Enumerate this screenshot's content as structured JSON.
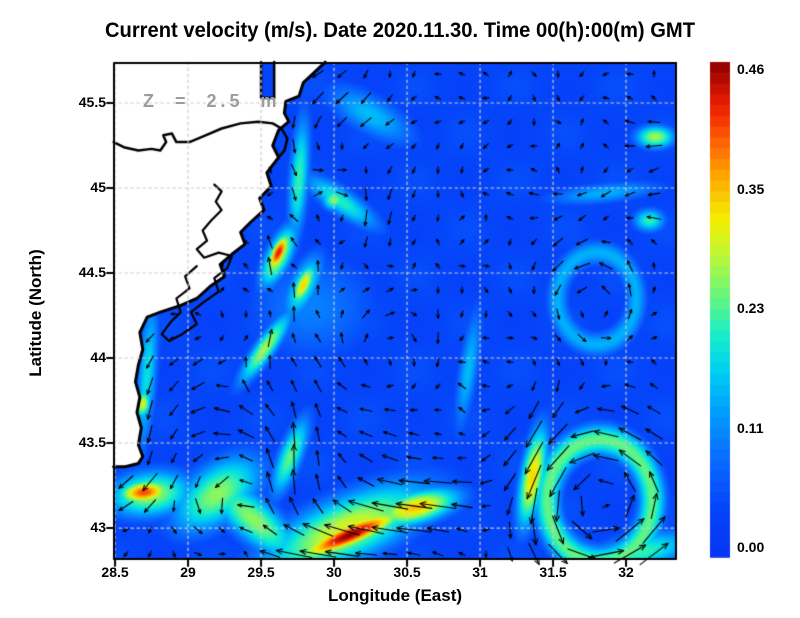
{
  "chart_data": {
    "type": "heatmap",
    "subtype": "ocean-current-speed-with-vector-arrows",
    "title": "Current velocity (m/s). Date 2020.11.30. Time 00(h):00(m) GMT",
    "depth_label": "Z = 2.5 m",
    "date": "2020.11.30",
    "time": "00(h):00(m) GMT",
    "unit": "m/s",
    "xlabel": "Longitude (East)",
    "ylabel": "Latitude (North)",
    "xlim": [
      28.486,
      32.349
    ],
    "ylim": [
      42.812,
      45.741
    ],
    "grid": true,
    "x_ticks": [
      {
        "v": 28.5,
        "label": "28.5"
      },
      {
        "v": 29.0,
        "label": "29"
      },
      {
        "v": 29.5,
        "label": "29.5"
      },
      {
        "v": 30.0,
        "label": "30"
      },
      {
        "v": 30.5,
        "label": "30.5"
      },
      {
        "v": 31.0,
        "label": "31"
      },
      {
        "v": 31.5,
        "label": "31.5"
      },
      {
        "v": 32.0,
        "label": "32"
      }
    ],
    "y_ticks": [
      {
        "v": 45.5,
        "label": "45.5"
      },
      {
        "v": 45.0,
        "label": "45"
      },
      {
        "v": 44.5,
        "label": "44.5"
      },
      {
        "v": 44.0,
        "label": "44"
      },
      {
        "v": 43.5,
        "label": "43.5"
      },
      {
        "v": 43.0,
        "label": "43"
      }
    ],
    "colorbar": {
      "min": 0.0,
      "max": 0.46,
      "labels": [
        {
          "v": 0.46,
          "label": "0.46"
        },
        {
          "v": 0.345,
          "label": "0.35"
        },
        {
          "v": 0.23,
          "label": "0.23"
        },
        {
          "v": 0.115,
          "label": "0.11"
        },
        {
          "v": 0.0,
          "label": "0.00"
        }
      ],
      "stops": [
        [
          0.0,
          "#0535f5"
        ],
        [
          0.1,
          "#0546fa"
        ],
        [
          0.2,
          "#0a6cff"
        ],
        [
          0.3,
          "#00a2ff"
        ],
        [
          0.38,
          "#00d2f0"
        ],
        [
          0.45,
          "#18eec8"
        ],
        [
          0.52,
          "#62f584"
        ],
        [
          0.6,
          "#b4f83c"
        ],
        [
          0.68,
          "#f4ef00"
        ],
        [
          0.76,
          "#ffb000"
        ],
        [
          0.84,
          "#ff6000"
        ],
        [
          0.91,
          "#ee1e00"
        ],
        [
          1.0,
          "#8c0000"
        ]
      ]
    },
    "background_speed": 0.045,
    "speed_field_features": [
      {
        "name": "main-jet-core",
        "lon": 30.11,
        "lat": 42.96,
        "value": 0.46,
        "sx": 0.28,
        "sy": 0.05,
        "rot": 20,
        "u": -0.4,
        "v": 0.1
      },
      {
        "name": "main-jet-halo",
        "lon": 30.08,
        "lat": 42.99,
        "value": 0.3,
        "sx": 0.45,
        "sy": 0.14,
        "rot": 20,
        "u": -0.15,
        "v": 0.04
      },
      {
        "name": "jet-east-extension",
        "lon": 30.56,
        "lat": 43.12,
        "value": 0.34,
        "sx": 0.22,
        "sy": 0.07,
        "rot": 12,
        "u": -0.28,
        "v": 0.06
      },
      {
        "name": "jet-west-band",
        "lon": 29.45,
        "lat": 43.05,
        "value": 0.26,
        "sx": 0.28,
        "sy": 0.1,
        "rot": -35,
        "u": -0.15,
        "v": -0.13
      },
      {
        "name": "sw-coastal-spot",
        "lon": 28.7,
        "lat": 43.21,
        "value": 0.4,
        "sx": 0.13,
        "sy": 0.05,
        "rot": 5,
        "u": -0.2,
        "v": -0.16
      },
      {
        "name": "sw-coastal-halo",
        "lon": 28.74,
        "lat": 43.2,
        "value": 0.27,
        "sx": 0.22,
        "sy": 0.1,
        "rot": 5,
        "u": 0,
        "v": 0
      },
      {
        "name": "delta-red-spot",
        "lon": 29.62,
        "lat": 44.62,
        "value": 0.43,
        "sx": 0.09,
        "sy": 0.035,
        "rot": 60,
        "u": 0.04,
        "v": 0.3
      },
      {
        "name": "delta-red-halo",
        "lon": 29.62,
        "lat": 44.6,
        "value": 0.29,
        "sx": 0.15,
        "sy": 0.06,
        "rot": 60,
        "u": 0,
        "v": 0
      },
      {
        "name": "yellow-spot-south",
        "lon": 29.79,
        "lat": 44.43,
        "value": 0.33,
        "sx": 0.1,
        "sy": 0.04,
        "rot": 60,
        "u": 0.05,
        "v": 0.26
      },
      {
        "name": "yellow-spot-halo",
        "lon": 29.79,
        "lat": 44.42,
        "value": 0.22,
        "sx": 0.16,
        "sy": 0.07,
        "rot": 60,
        "u": 0,
        "v": 0
      },
      {
        "name": "sw-delta-filament",
        "lon": 29.53,
        "lat": 44.06,
        "value": 0.27,
        "sx": 0.2,
        "sy": 0.048,
        "rot": 50,
        "u": 0.07,
        "v": 0.18
      },
      {
        "name": "coastal-strip-west",
        "lon": 28.72,
        "lat": 43.9,
        "value": 0.19,
        "sx": 0.34,
        "sy": 0.05,
        "rot": 85,
        "u": -0.04,
        "v": -0.14
      },
      {
        "name": "coastal-yellow-dot",
        "lon": 28.69,
        "lat": 43.73,
        "value": 0.3,
        "sx": 0.06,
        "sy": 0.04,
        "rot": 80,
        "u": 0,
        "v": 0
      },
      {
        "name": "green-region-low",
        "lon": 29.2,
        "lat": 43.2,
        "value": 0.26,
        "sx": 0.25,
        "sy": 0.13,
        "rot": 30,
        "u": 0.04,
        "v": 0.14
      },
      {
        "name": "mid-green-band",
        "lon": 29.7,
        "lat": 43.42,
        "value": 0.24,
        "sx": 0.19,
        "sy": 0.06,
        "rot": 65,
        "u": 0.05,
        "v": 0.2
      },
      {
        "name": "eddy1-west-arc",
        "lon": 31.36,
        "lat": 43.3,
        "value": 0.33,
        "sx": 0.22,
        "sy": 0.06,
        "rot": 78,
        "u": -0.04,
        "v": -0.26
      },
      {
        "name": "se-corner-band",
        "lon": 32.1,
        "lat": 42.86,
        "value": 0.22,
        "sx": 0.28,
        "sy": 0.08,
        "rot": 10,
        "u": 0.18,
        "v": 0.05
      },
      {
        "name": "ne-green-spot",
        "lon": 32.2,
        "lat": 45.3,
        "value": 0.27,
        "sx": 0.1,
        "sy": 0.05,
        "rot": 0,
        "u": -0.16,
        "v": 0.03
      },
      {
        "name": "ne-cyan-streak",
        "lon": 31.85,
        "lat": 44.97,
        "value": 0.15,
        "sx": 0.3,
        "sy": 0.045,
        "rot": 5,
        "u": -0.1,
        "v": 0
      },
      {
        "name": "top-cyan-patch",
        "lon": 30.25,
        "lat": 45.43,
        "value": 0.16,
        "sx": 0.25,
        "sy": 0.09,
        "rot": -25,
        "u": -0.12,
        "v": -0.1
      },
      {
        "name": "delta-front-arc",
        "lon": 30.05,
        "lat": 44.92,
        "value": 0.21,
        "sx": 0.22,
        "sy": 0.06,
        "rot": -30,
        "u": 0.08,
        "v": -0.06
      },
      {
        "name": "delta-front-spot",
        "lon": 30.0,
        "lat": 44.93,
        "value": 0.26,
        "sx": 0.06,
        "sy": 0.045,
        "rot": 0,
        "u": 0,
        "v": 0
      },
      {
        "name": "coastal-strip-north",
        "lon": 29.76,
        "lat": 45.06,
        "value": 0.22,
        "sx": 0.28,
        "sy": 0.05,
        "rot": 85,
        "u": -0.04,
        "v": -0.16
      },
      {
        "name": "mid-filament",
        "lon": 30.92,
        "lat": 43.93,
        "value": 0.16,
        "sx": 0.28,
        "sy": 0.05,
        "rot": 80,
        "u": 0,
        "v": 0.1
      },
      {
        "name": "east-green-dot",
        "lon": 32.16,
        "lat": 44.81,
        "value": 0.22,
        "sx": 0.08,
        "sy": 0.05,
        "rot": 0,
        "u": -0.1,
        "v": 0
      },
      {
        "name": "soft-broad-cyan",
        "lon": 29.85,
        "lat": 44.3,
        "value": 0.11,
        "sx": 0.35,
        "sy": 0.25,
        "rot": 0,
        "u": 0,
        "v": 0
      }
    ],
    "eddy_rings": [
      {
        "name": "se-eddy-ring",
        "lon": 31.82,
        "lat": 43.16,
        "radius": 0.36,
        "thickness": 0.1,
        "value": 0.24
      },
      {
        "name": "mid-east-ring",
        "lon": 31.8,
        "lat": 44.35,
        "radius": 0.27,
        "thickness": 0.08,
        "value": 0.15
      }
    ],
    "gyres": [
      {
        "name": "se-cyclone",
        "lon": 31.82,
        "lat": 43.16,
        "radius": 0.42,
        "strength": 0.3,
        "sense": "ccw"
      },
      {
        "name": "mid-east-eddy",
        "lon": 31.8,
        "lat": 44.35,
        "radius": 0.3,
        "strength": 0.13,
        "sense": "ccw"
      },
      {
        "name": "delta-front-eddy",
        "lon": 30.05,
        "lat": 44.93,
        "radius": 0.28,
        "strength": 0.11,
        "sense": "cw"
      },
      {
        "name": "sw-circulation",
        "lon": 29.35,
        "lat": 43.3,
        "radius": 0.5,
        "strength": 0.14,
        "sense": "ccw"
      },
      {
        "name": "center-swirl",
        "lon": 30.45,
        "lat": 44.0,
        "radius": 0.45,
        "strength": 0.08,
        "sense": "cw"
      }
    ],
    "arrows": {
      "spacing_px": 24,
      "scale": 78,
      "min_len": 6,
      "max_len": 36,
      "color": "#000000"
    },
    "coastline": [
      [
        29.94,
        45.74
      ],
      [
        29.79,
        45.62
      ],
      [
        29.76,
        45.54
      ],
      [
        29.67,
        45.51
      ],
      [
        29.66,
        45.44
      ],
      [
        29.69,
        45.39
      ],
      [
        29.62,
        45.34
      ],
      [
        29.58,
        45.25
      ],
      [
        29.62,
        45.18
      ],
      [
        29.54,
        45.09
      ],
      [
        29.57,
        45.01
      ],
      [
        29.49,
        44.94
      ],
      [
        29.52,
        44.87
      ],
      [
        29.43,
        44.8
      ],
      [
        29.36,
        44.74
      ],
      [
        29.39,
        44.67
      ],
      [
        29.3,
        44.61
      ],
      [
        29.22,
        44.55
      ],
      [
        29.25,
        44.48
      ],
      [
        29.15,
        44.42
      ],
      [
        29.06,
        44.35
      ],
      [
        28.95,
        44.31
      ],
      [
        28.81,
        44.27
      ],
      [
        28.72,
        44.24
      ],
      [
        28.67,
        44.15
      ],
      [
        28.69,
        44.05
      ],
      [
        28.66,
        43.96
      ],
      [
        28.64,
        43.86
      ],
      [
        28.67,
        43.77
      ],
      [
        28.65,
        43.68
      ],
      [
        28.68,
        43.59
      ],
      [
        28.66,
        43.49
      ],
      [
        28.69,
        43.42
      ],
      [
        28.66,
        43.38
      ],
      [
        28.57,
        43.36
      ],
      [
        28.49,
        43.36
      ]
    ],
    "lake_contours": [
      [
        [
          28.49,
          45.27
        ],
        [
          28.56,
          45.24
        ],
        [
          28.66,
          45.22
        ],
        [
          28.75,
          45.23
        ],
        [
          28.81,
          45.22
        ],
        [
          28.85,
          45.27
        ],
        [
          28.83,
          45.31
        ],
        [
          28.89,
          45.32
        ],
        [
          28.92,
          45.27
        ],
        [
          29.01,
          45.27
        ],
        [
          29.12,
          45.31
        ],
        [
          29.23,
          45.35
        ],
        [
          29.36,
          45.38
        ],
        [
          29.48,
          45.39
        ],
        [
          29.58,
          45.38
        ],
        [
          29.64,
          45.35
        ],
        [
          29.68,
          45.29
        ],
        [
          29.66,
          45.22
        ],
        [
          29.62,
          45.18
        ]
      ],
      [
        [
          29.18,
          45.02
        ],
        [
          29.23,
          44.98
        ],
        [
          29.19,
          44.92
        ],
        [
          29.23,
          44.87
        ],
        [
          29.16,
          44.81
        ],
        [
          29.1,
          44.75
        ],
        [
          29.13,
          44.69
        ],
        [
          29.06,
          44.64
        ],
        [
          29.11,
          44.59
        ],
        [
          29.21,
          44.62
        ],
        [
          29.3,
          44.6
        ],
        [
          29.27,
          44.53
        ],
        [
          29.18,
          44.47
        ],
        [
          29.21,
          44.39
        ],
        [
          29.11,
          44.33
        ],
        [
          29.02,
          44.27
        ],
        [
          29.06,
          44.2
        ],
        [
          28.96,
          44.14
        ],
        [
          28.87,
          44.1
        ],
        [
          28.82,
          44.14
        ],
        [
          28.88,
          44.21
        ],
        [
          28.95,
          44.27
        ],
        [
          28.92,
          44.35
        ],
        [
          29.01,
          44.41
        ],
        [
          28.98,
          44.48
        ],
        [
          29.06,
          44.54
        ]
      ]
    ],
    "inlet": {
      "lon": [
        29.5,
        29.59
      ],
      "lat": [
        45.53,
        45.741
      ]
    },
    "land_color": "#ffffff",
    "coast_color": "#000000",
    "grid_color": "#cdcdcd"
  }
}
